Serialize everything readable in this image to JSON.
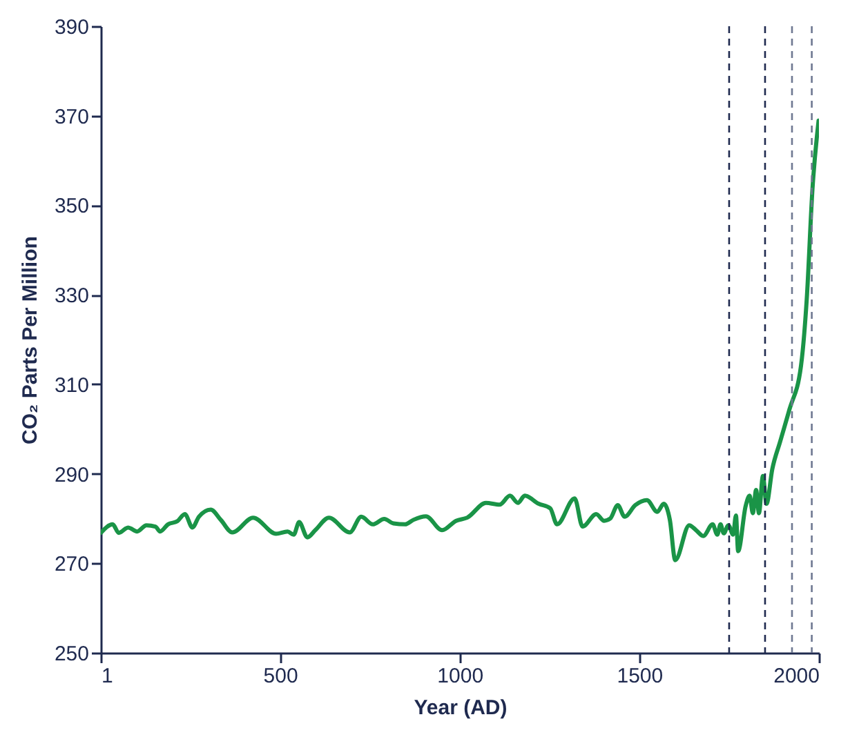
{
  "chart_data": {
    "type": "line",
    "xlabel": "Year (AD)",
    "ylabel": "CO₂ Parts Per Million",
    "xlim": [
      1,
      2000
    ],
    "xticks": [
      1,
      500,
      1000,
      1500,
      2000
    ],
    "ylim": [
      250,
      390
    ],
    "yticks": [
      250,
      270,
      290,
      310,
      330,
      350,
      370,
      390
    ],
    "grid": false,
    "marker": "none",
    "line_style": "solid",
    "series": [
      {
        "color": "#1a9447",
        "x": [
          1,
          34,
          51,
          77,
          102,
          128,
          153,
          166,
          188,
          214,
          235,
          256,
          274,
          307,
          335,
          367,
          425,
          489,
          521,
          538,
          553,
          576,
          598,
          636,
          694,
          726,
          758,
          790,
          816,
          848,
          871,
          906,
          951,
          990,
          1021,
          1073,
          1111,
          1140,
          1162,
          1181,
          1220,
          1252,
          1271,
          1320,
          1342,
          1380,
          1402,
          1419,
          1440,
          1459,
          1489,
          1521,
          1550,
          1568,
          1585,
          1600,
          1639,
          1658,
          1678,
          1704,
          1717,
          1726,
          1735,
          1748,
          1761,
          1769,
          1775,
          1796,
          1807,
          1816,
          1825,
          1833,
          1844,
          1854,
          1870,
          1892,
          1918,
          1950,
          1966,
          1982,
          1999
        ],
        "values": [
          276.8,
          278.7,
          276.8,
          278.0,
          277.1,
          278.5,
          278.2,
          277.1,
          278.7,
          279.4,
          281.0,
          278.0,
          280.4,
          282.0,
          279.7,
          276.9,
          280.2,
          276.6,
          277.1,
          276.4,
          279.2,
          275.8,
          277.4,
          280.2,
          276.9,
          280.4,
          278.7,
          279.9,
          278.9,
          278.7,
          279.7,
          280.5,
          277.4,
          279.5,
          280.2,
          283.5,
          283.1,
          285.1,
          283.5,
          285.1,
          283.3,
          282.3,
          278.7,
          284.5,
          278.2,
          281.0,
          279.5,
          280.0,
          283.0,
          280.4,
          283.0,
          284.1,
          281.5,
          283.3,
          279.7,
          270.7,
          278.5,
          277.4,
          276.1,
          278.7,
          276.4,
          278.7,
          276.7,
          278.5,
          276.4,
          280.7,
          272.7,
          282.8,
          285.1,
          281.2,
          286.4,
          281.2,
          289.5,
          283.3,
          291.0,
          297.2,
          304.4,
          314.1,
          329.0,
          353.7,
          368.9
        ]
      }
    ],
    "ref_lines": [
      {
        "axis": "x",
        "value": 1750,
        "color": "#1f2a4f",
        "line_style": "dashed"
      },
      {
        "axis": "x",
        "value": 1850,
        "color": "#1f2a4f",
        "line_style": "dashed"
      },
      {
        "axis": "x",
        "value": 1925,
        "color": "#6e7891",
        "line_style": "dashed"
      },
      {
        "axis": "x",
        "value": 1980,
        "color": "#6e7891",
        "line_style": "dashed"
      }
    ]
  }
}
